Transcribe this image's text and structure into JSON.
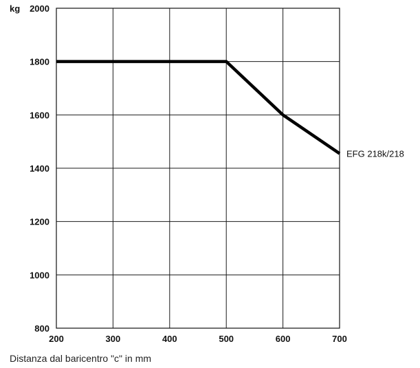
{
  "chart_data": {
    "type": "line",
    "y_unit": "kg",
    "xlabel": "Distanza dal baricentro \"c\" in mm",
    "ylabel": "",
    "xlim": [
      200,
      700
    ],
    "ylim": [
      800,
      2000
    ],
    "x_ticks": [
      200,
      300,
      400,
      500,
      600,
      700
    ],
    "y_ticks": [
      800,
      1000,
      1200,
      1400,
      1600,
      1800,
      2000
    ],
    "grid": true,
    "series": [
      {
        "name": "EFG 218k/218",
        "color": "#000000",
        "x": [
          200,
          500,
          600,
          700
        ],
        "y": [
          1800,
          1800,
          1600,
          1455
        ]
      }
    ]
  }
}
